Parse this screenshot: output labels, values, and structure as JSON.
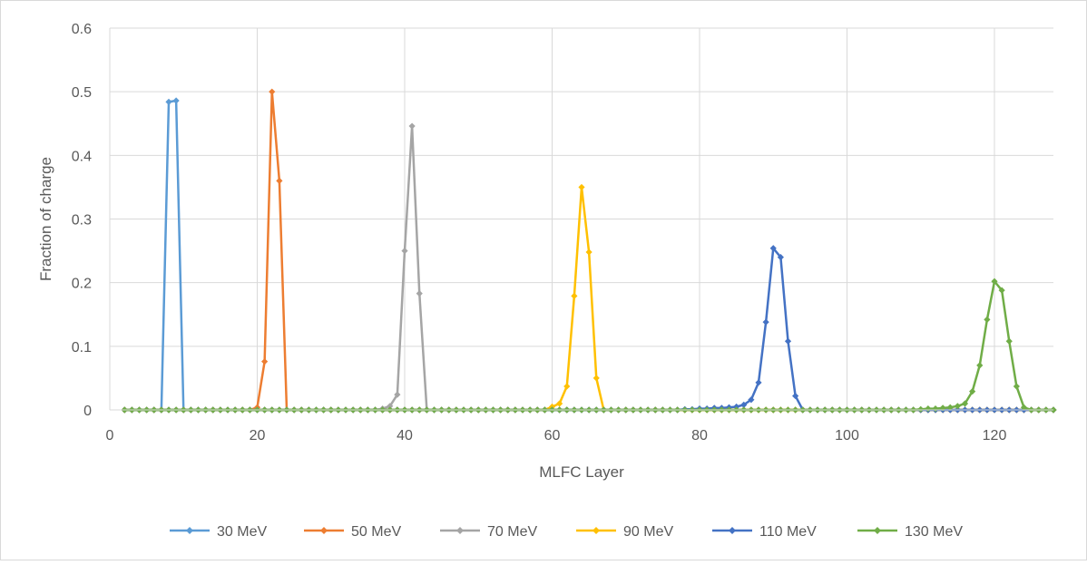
{
  "chart_data": {
    "type": "line",
    "title": "",
    "xlabel": "MLFC Layer",
    "ylabel": "Fraction of charge",
    "xlim": [
      0,
      128
    ],
    "ylim": [
      0,
      0.6
    ],
    "xticks": [
      0,
      20,
      40,
      60,
      80,
      100,
      120
    ],
    "yticks": [
      0,
      0.1,
      0.2,
      0.3,
      0.4,
      0.5,
      0.6
    ],
    "xtick_labels": [
      "0",
      "20",
      "40",
      "60",
      "80",
      "100",
      "120"
    ],
    "ytick_labels": [
      "0",
      "0.1",
      "0.2",
      "0.3",
      "0.4",
      "0.5",
      "0.6"
    ],
    "grid": "vertical and horizontal major gridlines",
    "legend_position": "bottom",
    "markers": "diamond",
    "series": [
      {
        "name": "30 MeV",
        "color": "#5B9BD5",
        "peak_points": [
          [
            7,
            0
          ],
          [
            8,
            0.484
          ],
          [
            9,
            0.486
          ],
          [
            10,
            0
          ]
        ]
      },
      {
        "name": "50 MeV",
        "color": "#ED7D31",
        "peak_points": [
          [
            19,
            0
          ],
          [
            20,
            0.004
          ],
          [
            21,
            0.076
          ],
          [
            22,
            0.5
          ],
          [
            23,
            0.36
          ],
          [
            24,
            0
          ]
        ]
      },
      {
        "name": "70 MeV",
        "color": "#A5A5A5",
        "peak_points": [
          [
            36,
            0
          ],
          [
            37,
            0.002
          ],
          [
            38,
            0.006
          ],
          [
            39,
            0.024
          ],
          [
            40,
            0.25
          ],
          [
            41,
            0.446
          ],
          [
            42,
            0.183
          ],
          [
            43,
            0
          ]
        ]
      },
      {
        "name": "90 MeV",
        "color": "#FFC000",
        "peak_points": [
          [
            59,
            0
          ],
          [
            60,
            0.005
          ],
          [
            61,
            0.01
          ],
          [
            62,
            0.037
          ],
          [
            63,
            0.179
          ],
          [
            64,
            0.35
          ],
          [
            65,
            0.248
          ],
          [
            66,
            0.05
          ],
          [
            67,
            0
          ]
        ]
      },
      {
        "name": "110 MeV",
        "color": "#4472C4",
        "peak_points": [
          [
            77,
            0
          ],
          [
            78,
            0.001
          ],
          [
            79,
            0.001
          ],
          [
            80,
            0.002
          ],
          [
            81,
            0.002
          ],
          [
            82,
            0.003
          ],
          [
            83,
            0.003
          ],
          [
            84,
            0.004
          ],
          [
            85,
            0.005
          ],
          [
            86,
            0.008
          ],
          [
            87,
            0.016
          ],
          [
            88,
            0.043
          ],
          [
            89,
            0.138
          ],
          [
            90,
            0.254
          ],
          [
            91,
            0.24
          ],
          [
            92,
            0.108
          ],
          [
            93,
            0.022
          ],
          [
            94,
            0
          ]
        ]
      },
      {
        "name": "130 MeV",
        "color": "#70AD47",
        "peak_points": [
          [
            109,
            0
          ],
          [
            110,
            0.001
          ],
          [
            111,
            0.002
          ],
          [
            112,
            0.002
          ],
          [
            113,
            0.003
          ],
          [
            114,
            0.004
          ],
          [
            115,
            0.006
          ],
          [
            116,
            0.01
          ],
          [
            117,
            0.029
          ],
          [
            118,
            0.07
          ],
          [
            119,
            0.142
          ],
          [
            120,
            0.202
          ],
          [
            121,
            0.188
          ],
          [
            122,
            0.108
          ],
          [
            123,
            0.037
          ],
          [
            124,
            0.004
          ],
          [
            125,
            0
          ]
        ]
      }
    ]
  }
}
